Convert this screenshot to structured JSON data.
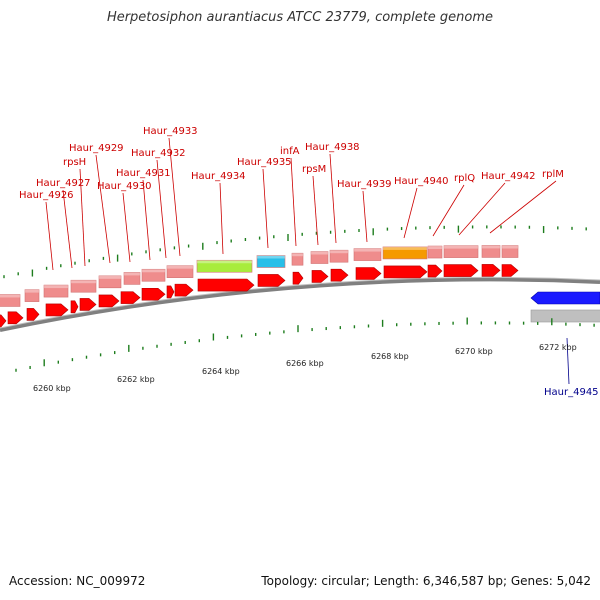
{
  "title": "Herpetosiphon aurantiacus ATCC 23779, complete genome",
  "footer": {
    "accession": "Accession: NC_009972",
    "summary": "Topology: circular; Length: 6,346,587 bp; Genes: 5,042"
  },
  "colors": {
    "forward_gene": "#ff0000",
    "forward_feature": "#ef8c8c",
    "reverse_gene": "#1a1aff",
    "reverse_feature": "#bfbfbf",
    "label_forward": "#cc0000",
    "label_reverse": "#00008b",
    "tick": "#1e7d1e",
    "backbone": "#808080",
    "special_green": "#a8ec3c",
    "special_cyan": "#27bfe8",
    "special_orange": "#f59a00"
  },
  "scale_labels": [
    "6260 kbp",
    "6262 kbp",
    "6264 kbp",
    "6266 kbp",
    "6268 kbp",
    "6270 kbp",
    "6272 kbp"
  ],
  "gene_labels_forward": [
    "Haur_4926",
    "Haur_4927",
    "rpsH",
    "Haur_4929",
    "Haur_4930",
    "Haur_4931",
    "Haur_4932",
    "Haur_4933",
    "Haur_4934",
    "Haur_4935",
    "infA",
    "rpsM",
    "Haur_4938",
    "Haur_4939",
    "Haur_4940",
    "rplQ",
    "Haur_4942",
    "rplM"
  ],
  "gene_labels_reverse": [
    "Haur_4945"
  ]
}
